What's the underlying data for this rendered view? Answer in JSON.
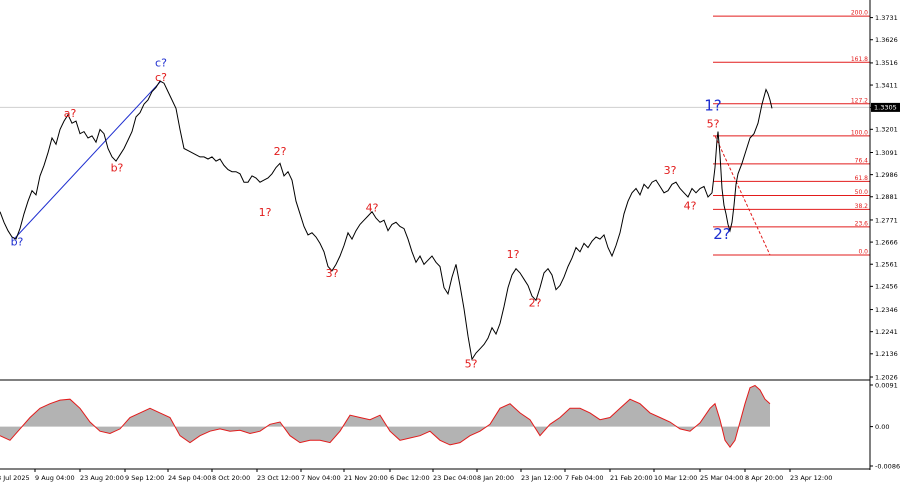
{
  "chart_data": {
    "type": "line",
    "price_panel": {
      "y_ticks": [
        "1.3731",
        "1.3626",
        "1.3516",
        "1.3411",
        "1.3305",
        "1.3201",
        "1.3091",
        "1.2986",
        "1.2881",
        "1.2771",
        "1.2666",
        "1.2561",
        "1.2456",
        "1.2346",
        "1.2241",
        "1.2136",
        "1.2026"
      ],
      "y_tick_values": [
        1.3731,
        1.3626,
        1.3516,
        1.3411,
        1.3305,
        1.3201,
        1.3091,
        1.2986,
        1.2881,
        1.2771,
        1.2666,
        1.2561,
        1.2456,
        1.2346,
        1.2241,
        1.2136,
        1.2026
      ],
      "ylim": [
        1.2026,
        1.3786
      ],
      "current_price": "1.3305",
      "current_price_value": 1.3305,
      "series_points": [
        [
          0,
          1.281
        ],
        [
          4,
          1.276
        ],
        [
          8,
          1.272
        ],
        [
          12,
          1.269
        ],
        [
          16,
          1.268
        ],
        [
          20,
          1.273
        ],
        [
          24,
          1.28
        ],
        [
          28,
          1.286
        ],
        [
          32,
          1.291
        ],
        [
          36,
          1.289
        ],
        [
          40,
          1.298
        ],
        [
          44,
          1.303
        ],
        [
          48,
          1.309
        ],
        [
          52,
          1.316
        ],
        [
          56,
          1.313
        ],
        [
          60,
          1.32
        ],
        [
          64,
          1.324
        ],
        [
          68,
          1.327
        ],
        [
          72,
          1.323
        ],
        [
          76,
          1.324
        ],
        [
          80,
          1.318
        ],
        [
          84,
          1.319
        ],
        [
          88,
          1.316
        ],
        [
          92,
          1.317
        ],
        [
          96,
          1.314
        ],
        [
          100,
          1.32
        ],
        [
          104,
          1.318
        ],
        [
          108,
          1.311
        ],
        [
          112,
          1.307
        ],
        [
          116,
          1.305
        ],
        [
          120,
          1.308
        ],
        [
          124,
          1.311
        ],
        [
          128,
          1.315
        ],
        [
          132,
          1.319
        ],
        [
          136,
          1.326
        ],
        [
          140,
          1.328
        ],
        [
          144,
          1.332
        ],
        [
          148,
          1.334
        ],
        [
          152,
          1.338
        ],
        [
          156,
          1.34
        ],
        [
          160,
          1.343
        ],
        [
          164,
          1.342
        ],
        [
          168,
          1.338
        ],
        [
          172,
          1.334
        ],
        [
          176,
          1.33
        ],
        [
          180,
          1.32
        ],
        [
          184,
          1.311
        ],
        [
          188,
          1.31
        ],
        [
          192,
          1.309
        ],
        [
          196,
          1.308
        ],
        [
          200,
          1.307
        ],
        [
          204,
          1.307
        ],
        [
          208,
          1.306
        ],
        [
          212,
          1.307
        ],
        [
          216,
          1.305
        ],
        [
          220,
          1.306
        ],
        [
          224,
          1.303
        ],
        [
          228,
          1.301
        ],
        [
          232,
          1.3
        ],
        [
          236,
          1.3
        ],
        [
          240,
          1.299
        ],
        [
          244,
          1.295
        ],
        [
          248,
          1.295
        ],
        [
          252,
          1.298
        ],
        [
          256,
          1.297
        ],
        [
          260,
          1.295
        ],
        [
          264,
          1.296
        ],
        [
          268,
          1.297
        ],
        [
          272,
          1.299
        ],
        [
          276,
          1.302
        ],
        [
          280,
          1.304
        ],
        [
          284,
          1.298
        ],
        [
          288,
          1.3
        ],
        [
          292,
          1.296
        ],
        [
          296,
          1.286
        ],
        [
          300,
          1.28
        ],
        [
          304,
          1.274
        ],
        [
          308,
          1.27
        ],
        [
          312,
          1.271
        ],
        [
          316,
          1.269
        ],
        [
          320,
          1.266
        ],
        [
          324,
          1.262
        ],
        [
          328,
          1.255
        ],
        [
          332,
          1.253
        ],
        [
          336,
          1.256
        ],
        [
          340,
          1.26
        ],
        [
          344,
          1.265
        ],
        [
          348,
          1.271
        ],
        [
          352,
          1.268
        ],
        [
          356,
          1.272
        ],
        [
          360,
          1.275
        ],
        [
          364,
          1.277
        ],
        [
          368,
          1.279
        ],
        [
          372,
          1.281
        ],
        [
          376,
          1.278
        ],
        [
          380,
          1.276
        ],
        [
          384,
          1.277
        ],
        [
          388,
          1.272
        ],
        [
          392,
          1.275
        ],
        [
          396,
          1.276
        ],
        [
          400,
          1.274
        ],
        [
          404,
          1.273
        ],
        [
          408,
          1.268
        ],
        [
          412,
          1.262
        ],
        [
          416,
          1.257
        ],
        [
          420,
          1.26
        ],
        [
          424,
          1.256
        ],
        [
          428,
          1.258
        ],
        [
          432,
          1.26
        ],
        [
          436,
          1.257
        ],
        [
          440,
          1.255
        ],
        [
          444,
          1.245
        ],
        [
          448,
          1.242
        ],
        [
          452,
          1.25
        ],
        [
          456,
          1.256
        ],
        [
          460,
          1.246
        ],
        [
          464,
          1.235
        ],
        [
          468,
          1.222
        ],
        [
          472,
          1.211
        ],
        [
          476,
          1.214
        ],
        [
          480,
          1.216
        ],
        [
          484,
          1.218
        ],
        [
          488,
          1.221
        ],
        [
          492,
          1.226
        ],
        [
          496,
          1.223
        ],
        [
          500,
          1.228
        ],
        [
          504,
          1.236
        ],
        [
          508,
          1.245
        ],
        [
          512,
          1.251
        ],
        [
          516,
          1.254
        ],
        [
          520,
          1.252
        ],
        [
          524,
          1.249
        ],
        [
          528,
          1.246
        ],
        [
          532,
          1.241
        ],
        [
          536,
          1.239
        ],
        [
          540,
          1.245
        ],
        [
          544,
          1.252
        ],
        [
          548,
          1.254
        ],
        [
          552,
          1.251
        ],
        [
          556,
          1.244
        ],
        [
          560,
          1.246
        ],
        [
          564,
          1.25
        ],
        [
          568,
          1.255
        ],
        [
          572,
          1.259
        ],
        [
          576,
          1.264
        ],
        [
          580,
          1.262
        ],
        [
          584,
          1.266
        ],
        [
          588,
          1.264
        ],
        [
          592,
          1.267
        ],
        [
          596,
          1.269
        ],
        [
          600,
          1.268
        ],
        [
          604,
          1.27
        ],
        [
          608,
          1.264
        ],
        [
          612,
          1.26
        ],
        [
          616,
          1.265
        ],
        [
          620,
          1.271
        ],
        [
          624,
          1.28
        ],
        [
          628,
          1.286
        ],
        [
          632,
          1.29
        ],
        [
          636,
          1.292
        ],
        [
          640,
          1.289
        ],
        [
          644,
          1.294
        ],
        [
          648,
          1.292
        ],
        [
          652,
          1.295
        ],
        [
          656,
          1.296
        ],
        [
          660,
          1.293
        ],
        [
          664,
          1.29
        ],
        [
          668,
          1.291
        ],
        [
          672,
          1.294
        ],
        [
          676,
          1.295
        ],
        [
          680,
          1.292
        ],
        [
          684,
          1.29
        ],
        [
          688,
          1.288
        ],
        [
          692,
          1.292
        ],
        [
          696,
          1.29
        ],
        [
          700,
          1.292
        ],
        [
          704,
          1.293
        ],
        [
          708,
          1.288
        ],
        [
          712,
          1.29
        ],
        [
          715,
          1.302
        ],
        [
          717,
          1.315
        ],
        [
          718,
          1.319
        ],
        [
          720,
          1.308
        ],
        [
          722,
          1.292
        ],
        [
          724,
          1.284
        ],
        [
          726,
          1.28
        ],
        [
          728,
          1.275
        ],
        [
          730,
          1.272
        ],
        [
          732,
          1.276
        ],
        [
          734,
          1.284
        ],
        [
          736,
          1.294
        ],
        [
          738,
          1.299
        ],
        [
          742,
          1.304
        ],
        [
          746,
          1.31
        ],
        [
          750,
          1.316
        ],
        [
          754,
          1.318
        ],
        [
          758,
          1.323
        ],
        [
          762,
          1.332
        ],
        [
          766,
          1.339
        ],
        [
          768,
          1.337
        ],
        [
          770,
          1.334
        ],
        [
          772,
          1.33
        ]
      ]
    },
    "oscillator_panel": {
      "y_ticks": [
        "0.0091",
        "0.00",
        "-0.00862"
      ],
      "y_tick_values": [
        0.0091,
        0.0,
        -0.00862
      ],
      "ylim": [
        -0.00862,
        0.0091
      ],
      "series_points": [
        [
          0,
          -0.002
        ],
        [
          10,
          -0.003
        ],
        [
          20,
          -0.0005
        ],
        [
          30,
          0.002
        ],
        [
          40,
          0.004
        ],
        [
          50,
          0.005
        ],
        [
          60,
          0.0058
        ],
        [
          70,
          0.006
        ],
        [
          80,
          0.004
        ],
        [
          90,
          0.001
        ],
        [
          100,
          -0.001
        ],
        [
          110,
          -0.0015
        ],
        [
          120,
          -0.0005
        ],
        [
          130,
          0.002
        ],
        [
          140,
          0.003
        ],
        [
          150,
          0.004
        ],
        [
          160,
          0.003
        ],
        [
          170,
          0.002
        ],
        [
          180,
          -0.002
        ],
        [
          190,
          -0.0035
        ],
        [
          200,
          -0.002
        ],
        [
          210,
          -0.001
        ],
        [
          220,
          -0.0005
        ],
        [
          230,
          -0.001
        ],
        [
          240,
          -0.0008
        ],
        [
          250,
          -0.0015
        ],
        [
          260,
          -0.001
        ],
        [
          270,
          0.0005
        ],
        [
          280,
          0.001
        ],
        [
          290,
          -0.002
        ],
        [
          300,
          -0.0035
        ],
        [
          310,
          -0.003
        ],
        [
          320,
          -0.003
        ],
        [
          330,
          -0.0035
        ],
        [
          340,
          -0.001
        ],
        [
          350,
          0.0025
        ],
        [
          360,
          0.002
        ],
        [
          370,
          0.0015
        ],
        [
          380,
          0.0025
        ],
        [
          390,
          -0.001
        ],
        [
          400,
          -0.003
        ],
        [
          410,
          -0.0025
        ],
        [
          420,
          -0.002
        ],
        [
          430,
          -0.001
        ],
        [
          440,
          -0.003
        ],
        [
          450,
          -0.004
        ],
        [
          460,
          -0.0035
        ],
        [
          470,
          -0.002
        ],
        [
          480,
          -0.001
        ],
        [
          490,
          0.0005
        ],
        [
          500,
          0.004
        ],
        [
          510,
          0.005
        ],
        [
          520,
          0.003
        ],
        [
          530,
          0.0015
        ],
        [
          540,
          -0.002
        ],
        [
          550,
          0.0005
        ],
        [
          560,
          0.002
        ],
        [
          570,
          0.004
        ],
        [
          580,
          0.004
        ],
        [
          590,
          0.003
        ],
        [
          600,
          0.0015
        ],
        [
          610,
          0.002
        ],
        [
          620,
          0.004
        ],
        [
          630,
          0.006
        ],
        [
          640,
          0.005
        ],
        [
          650,
          0.003
        ],
        [
          660,
          0.002
        ],
        [
          670,
          0.001
        ],
        [
          680,
          -0.0005
        ],
        [
          690,
          -0.001
        ],
        [
          700,
          0.0008
        ],
        [
          710,
          0.004
        ],
        [
          715,
          0.005
        ],
        [
          720,
          0.0015
        ],
        [
          725,
          -0.003
        ],
        [
          730,
          -0.0045
        ],
        [
          735,
          -0.003
        ],
        [
          740,
          0.001
        ],
        [
          745,
          0.005
        ],
        [
          750,
          0.0085
        ],
        [
          755,
          0.009
        ],
        [
          760,
          0.008
        ],
        [
          765,
          0.006
        ],
        [
          770,
          0.005
        ]
      ]
    },
    "x_ticks": [
      "8 Jul 2025",
      "9 Aug 04:00",
      "23 Aug 20:00",
      "9 Sep 12:00",
      "24 Sep 04:00",
      "8 Oct 20:00",
      "23 Oct 12:00",
      "7 Nov 04:00",
      "21 Nov 20:00",
      "6 Dec 12:00",
      "23 Dec 04:00",
      "8 Jan 20:00",
      "23 Jan 12:00",
      "7 Feb 04:00",
      "21 Feb 20:00",
      "10 Mar 12:00",
      "25 Mar 04:00",
      "8 Apr 20:00",
      "23 Apr 12:00"
    ],
    "x_tick_positions": [
      -3,
      35,
      80,
      125,
      168,
      212,
      257,
      301,
      344,
      390,
      433,
      477,
      521,
      565,
      610,
      654,
      700,
      745,
      790
    ],
    "wave_labels": [
      {
        "text": "a?",
        "x": 70,
        "y": 1.326,
        "color": "red"
      },
      {
        "text": "c?",
        "x": 161,
        "y": 1.343,
        "color": "red"
      },
      {
        "text": "c?",
        "x": 161,
        "y": 1.35,
        "color": "blue"
      },
      {
        "text": "b?",
        "x": 117,
        "y": 1.3,
        "color": "red"
      },
      {
        "text": "b?",
        "x": 17,
        "y": 1.265,
        "color": "blue"
      },
      {
        "text": "2?",
        "x": 280,
        "y": 1.308,
        "color": "red"
      },
      {
        "text": "1?",
        "x": 265,
        "y": 1.279,
        "color": "red"
      },
      {
        "text": "3?",
        "x": 332,
        "y": 1.25,
        "color": "red"
      },
      {
        "text": "4?",
        "x": 372,
        "y": 1.281,
        "color": "red"
      },
      {
        "text": "5?",
        "x": 471,
        "y": 1.207,
        "color": "red"
      },
      {
        "text": "1?",
        "x": 513,
        "y": 1.259,
        "color": "red"
      },
      {
        "text": "2?",
        "x": 535,
        "y": 1.236,
        "color": "red"
      },
      {
        "text": "3?",
        "x": 670,
        "y": 1.299,
        "color": "red"
      },
      {
        "text": "4?",
        "x": 690,
        "y": 1.282,
        "color": "red"
      },
      {
        "text": "5?",
        "x": 713,
        "y": 1.321,
        "color": "red"
      },
      {
        "text": "1?",
        "x": 713,
        "y": 1.329,
        "color": "blue",
        "large": true
      },
      {
        "text": "2?",
        "x": 722,
        "y": 1.268,
        "color": "blue",
        "large": true
      }
    ],
    "fib_levels": [
      {
        "label": "200.0",
        "value": 1.3738
      },
      {
        "label": "161.8",
        "value": 1.3519
      },
      {
        "label": "127.2",
        "value": 1.3322
      },
      {
        "label": "100.0",
        "value": 1.317
      },
      {
        "label": "76.4",
        "value": 1.3037
      },
      {
        "label": "61.8",
        "value": 1.2954
      },
      {
        "label": "50.0",
        "value": 1.2887
      },
      {
        "label": "38.2",
        "value": 1.2821
      },
      {
        "label": "23.6",
        "value": 1.2738
      },
      {
        "label": "0.0",
        "value": 1.2605
      }
    ],
    "trendline": [
      [
        14,
        1.268
      ],
      [
        161,
        1.343
      ]
    ],
    "fib_diagonal": [
      [
        715,
        1.317
      ],
      [
        770,
        1.2605
      ]
    ],
    "colors": {
      "price": "#000000",
      "fib": "#e21b1b",
      "trendline": "#1f2fd0",
      "osc_fill": "#b3b3b3",
      "osc_line": "#e21b1b",
      "wave_red": "#e21b1b",
      "wave_blue": "#1f2fd0",
      "price_marker": "#000000"
    }
  }
}
